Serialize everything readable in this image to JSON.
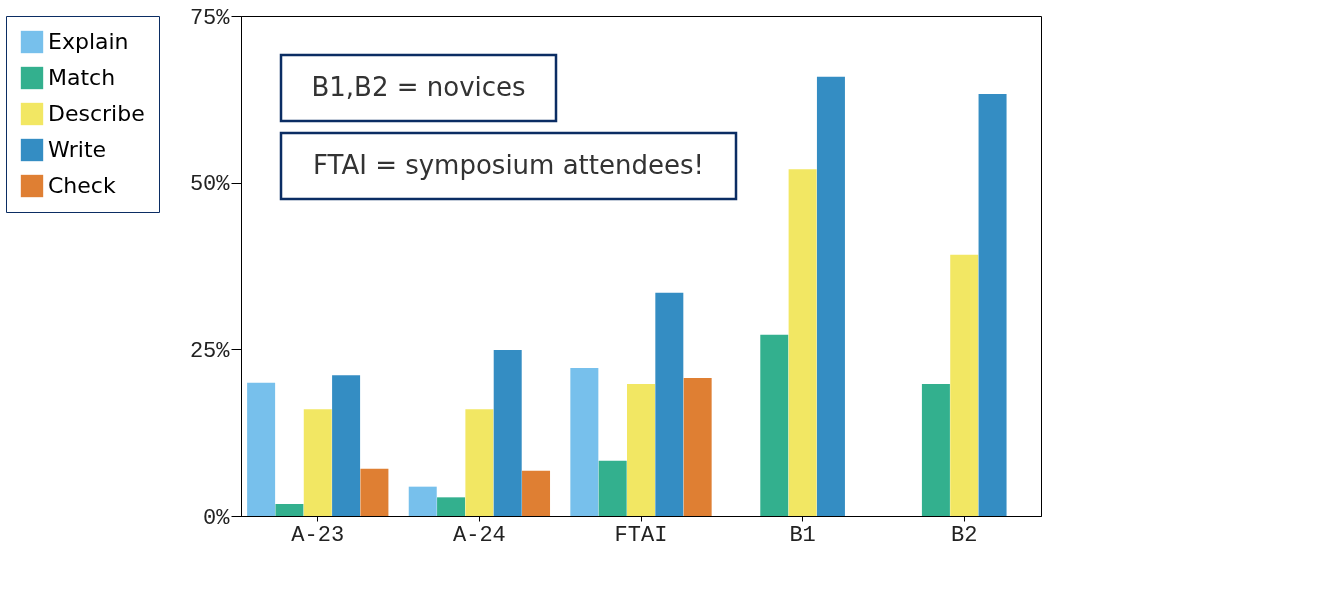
{
  "chart_data": {
    "type": "bar",
    "categories": [
      "A-23",
      "A-24",
      "FTAI",
      "B1",
      "B2"
    ],
    "series": [
      {
        "name": "Explain",
        "color": "#77c0ec",
        "values": [
          20,
          4.4,
          22.2,
          null,
          null
        ]
      },
      {
        "name": "Match",
        "color": "#33b08e",
        "values": [
          1.8,
          2.8,
          8.3,
          27.2,
          19.8
        ]
      },
      {
        "name": "Describe",
        "color": "#f2e763",
        "values": [
          16,
          16,
          19.8,
          52,
          39.2
        ]
      },
      {
        "name": "Write",
        "color": "#348dc3",
        "values": [
          21.1,
          24.9,
          33.5,
          65.9,
          63.3
        ]
      },
      {
        "name": "Check",
        "color": "#df7f33",
        "values": [
          7.1,
          6.8,
          20.7,
          null,
          null
        ]
      }
    ],
    "ylim": [
      0,
      75
    ],
    "yticks": [
      {
        "value": 0,
        "label": "0%"
      },
      {
        "value": 25,
        "label": "25%"
      },
      {
        "value": 50,
        "label": "50%"
      },
      {
        "value": 75,
        "label": "75%"
      }
    ],
    "annotations": [
      "B1,B2 = novices",
      "FTAI = symposium attendees!"
    ],
    "legend": "left",
    "grid": false
  }
}
